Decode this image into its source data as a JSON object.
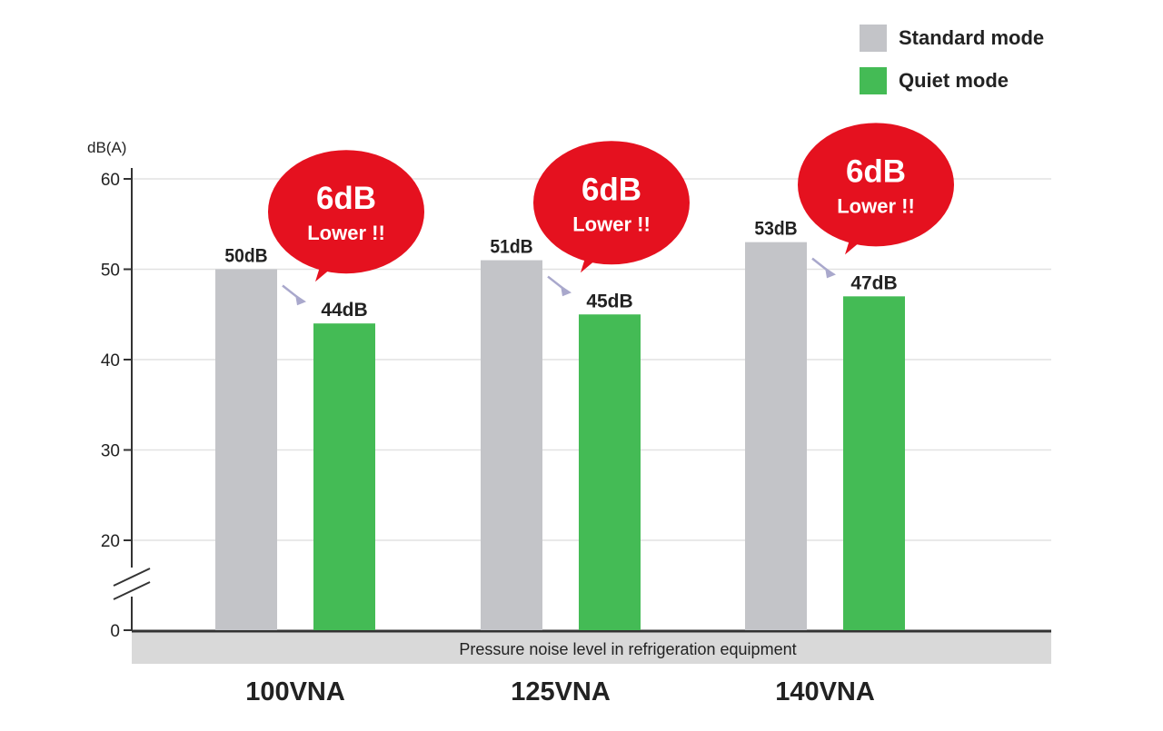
{
  "chart_data": {
    "type": "bar",
    "categories": [
      "100VNA",
      "125VNA",
      "140VNA"
    ],
    "series": [
      {
        "name": "Standard mode",
        "values": [
          50,
          51,
          53
        ],
        "labels": [
          "50dB",
          "51dB",
          "53dB"
        ],
        "color": "#c3c4c8"
      },
      {
        "name": "Quiet mode",
        "values": [
          44,
          45,
          47
        ],
        "labels": [
          "44dB",
          "45dB",
          "47dB"
        ],
        "color": "#44bb55"
      }
    ],
    "ylabel": "dB(A)",
    "xlabel": "Pressure noise level in refrigeration equipment",
    "yticks": [
      0,
      20,
      30,
      40,
      50,
      60
    ],
    "ylim": [
      0,
      60
    ],
    "axis_break": "between 0 and 20",
    "grid": true,
    "legend_position": "top-right",
    "annotations": [
      {
        "category": "100VNA",
        "big": "6dB",
        "small": "Lower !!"
      },
      {
        "category": "125VNA",
        "big": "6dB",
        "small": "Lower !!"
      },
      {
        "category": "140VNA",
        "big": "6dB",
        "small": "Lower !!"
      }
    ],
    "annotation_color": "#e5111f"
  }
}
